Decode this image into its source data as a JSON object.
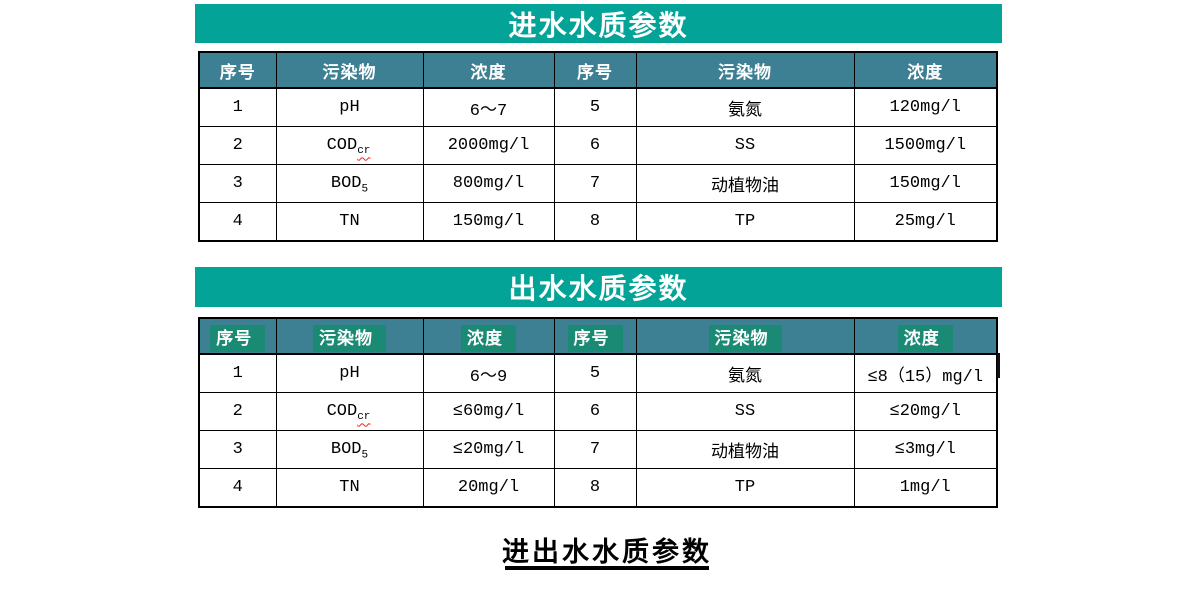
{
  "colors": {
    "title_bar": "#03A398",
    "header_cell": "#3D7F93",
    "header_highlight": "#1B8A75",
    "border": "#000000",
    "squiggle": "#FF1A1A",
    "title_text": "#FFFFFF",
    "body_text": "#000000"
  },
  "influent": {
    "title": "进水水质参数",
    "headers": [
      "序号",
      "污染物",
      "浓度",
      "序号",
      "污染物",
      "浓度"
    ],
    "header_highlight": false,
    "rows": [
      [
        "1",
        {
          "t": "pH"
        },
        "6～7",
        "5",
        "氨氮",
        "120mg/l"
      ],
      [
        "2",
        {
          "t": "COD",
          "sub": "cr",
          "squiggle": true
        },
        "2000mg/l",
        "6",
        "SS",
        "1500mg/l"
      ],
      [
        "3",
        {
          "t": "BOD",
          "sub": "5"
        },
        "800mg/l",
        "7",
        "动植物油",
        "150mg/l"
      ],
      [
        "4",
        {
          "t": "TN"
        },
        "150mg/l",
        "8",
        "TP",
        "25mg/l"
      ]
    ]
  },
  "effluent": {
    "title": "出水水质参数",
    "headers": [
      "序号",
      "污染物",
      "浓度",
      "序号",
      "污染物",
      "浓度"
    ],
    "header_highlight": true,
    "rows": [
      [
        "1",
        {
          "t": "pH"
        },
        "6～9",
        "5",
        "氨氮",
        "≤8（15）mg/l"
      ],
      [
        "2",
        {
          "t": "COD",
          "sub": "cr",
          "squiggle": true
        },
        "≤60mg/l",
        "6",
        "SS",
        "≤20mg/l"
      ],
      [
        "3",
        {
          "t": "BOD",
          "sub": "5"
        },
        "≤20mg/l",
        "7",
        "动植物油",
        "≤3mg/l"
      ],
      [
        "4",
        {
          "t": "TN"
        },
        "20mg/l",
        "8",
        "TP",
        "1mg/l"
      ]
    ]
  },
  "caption": {
    "text": "进出水水质参数"
  }
}
